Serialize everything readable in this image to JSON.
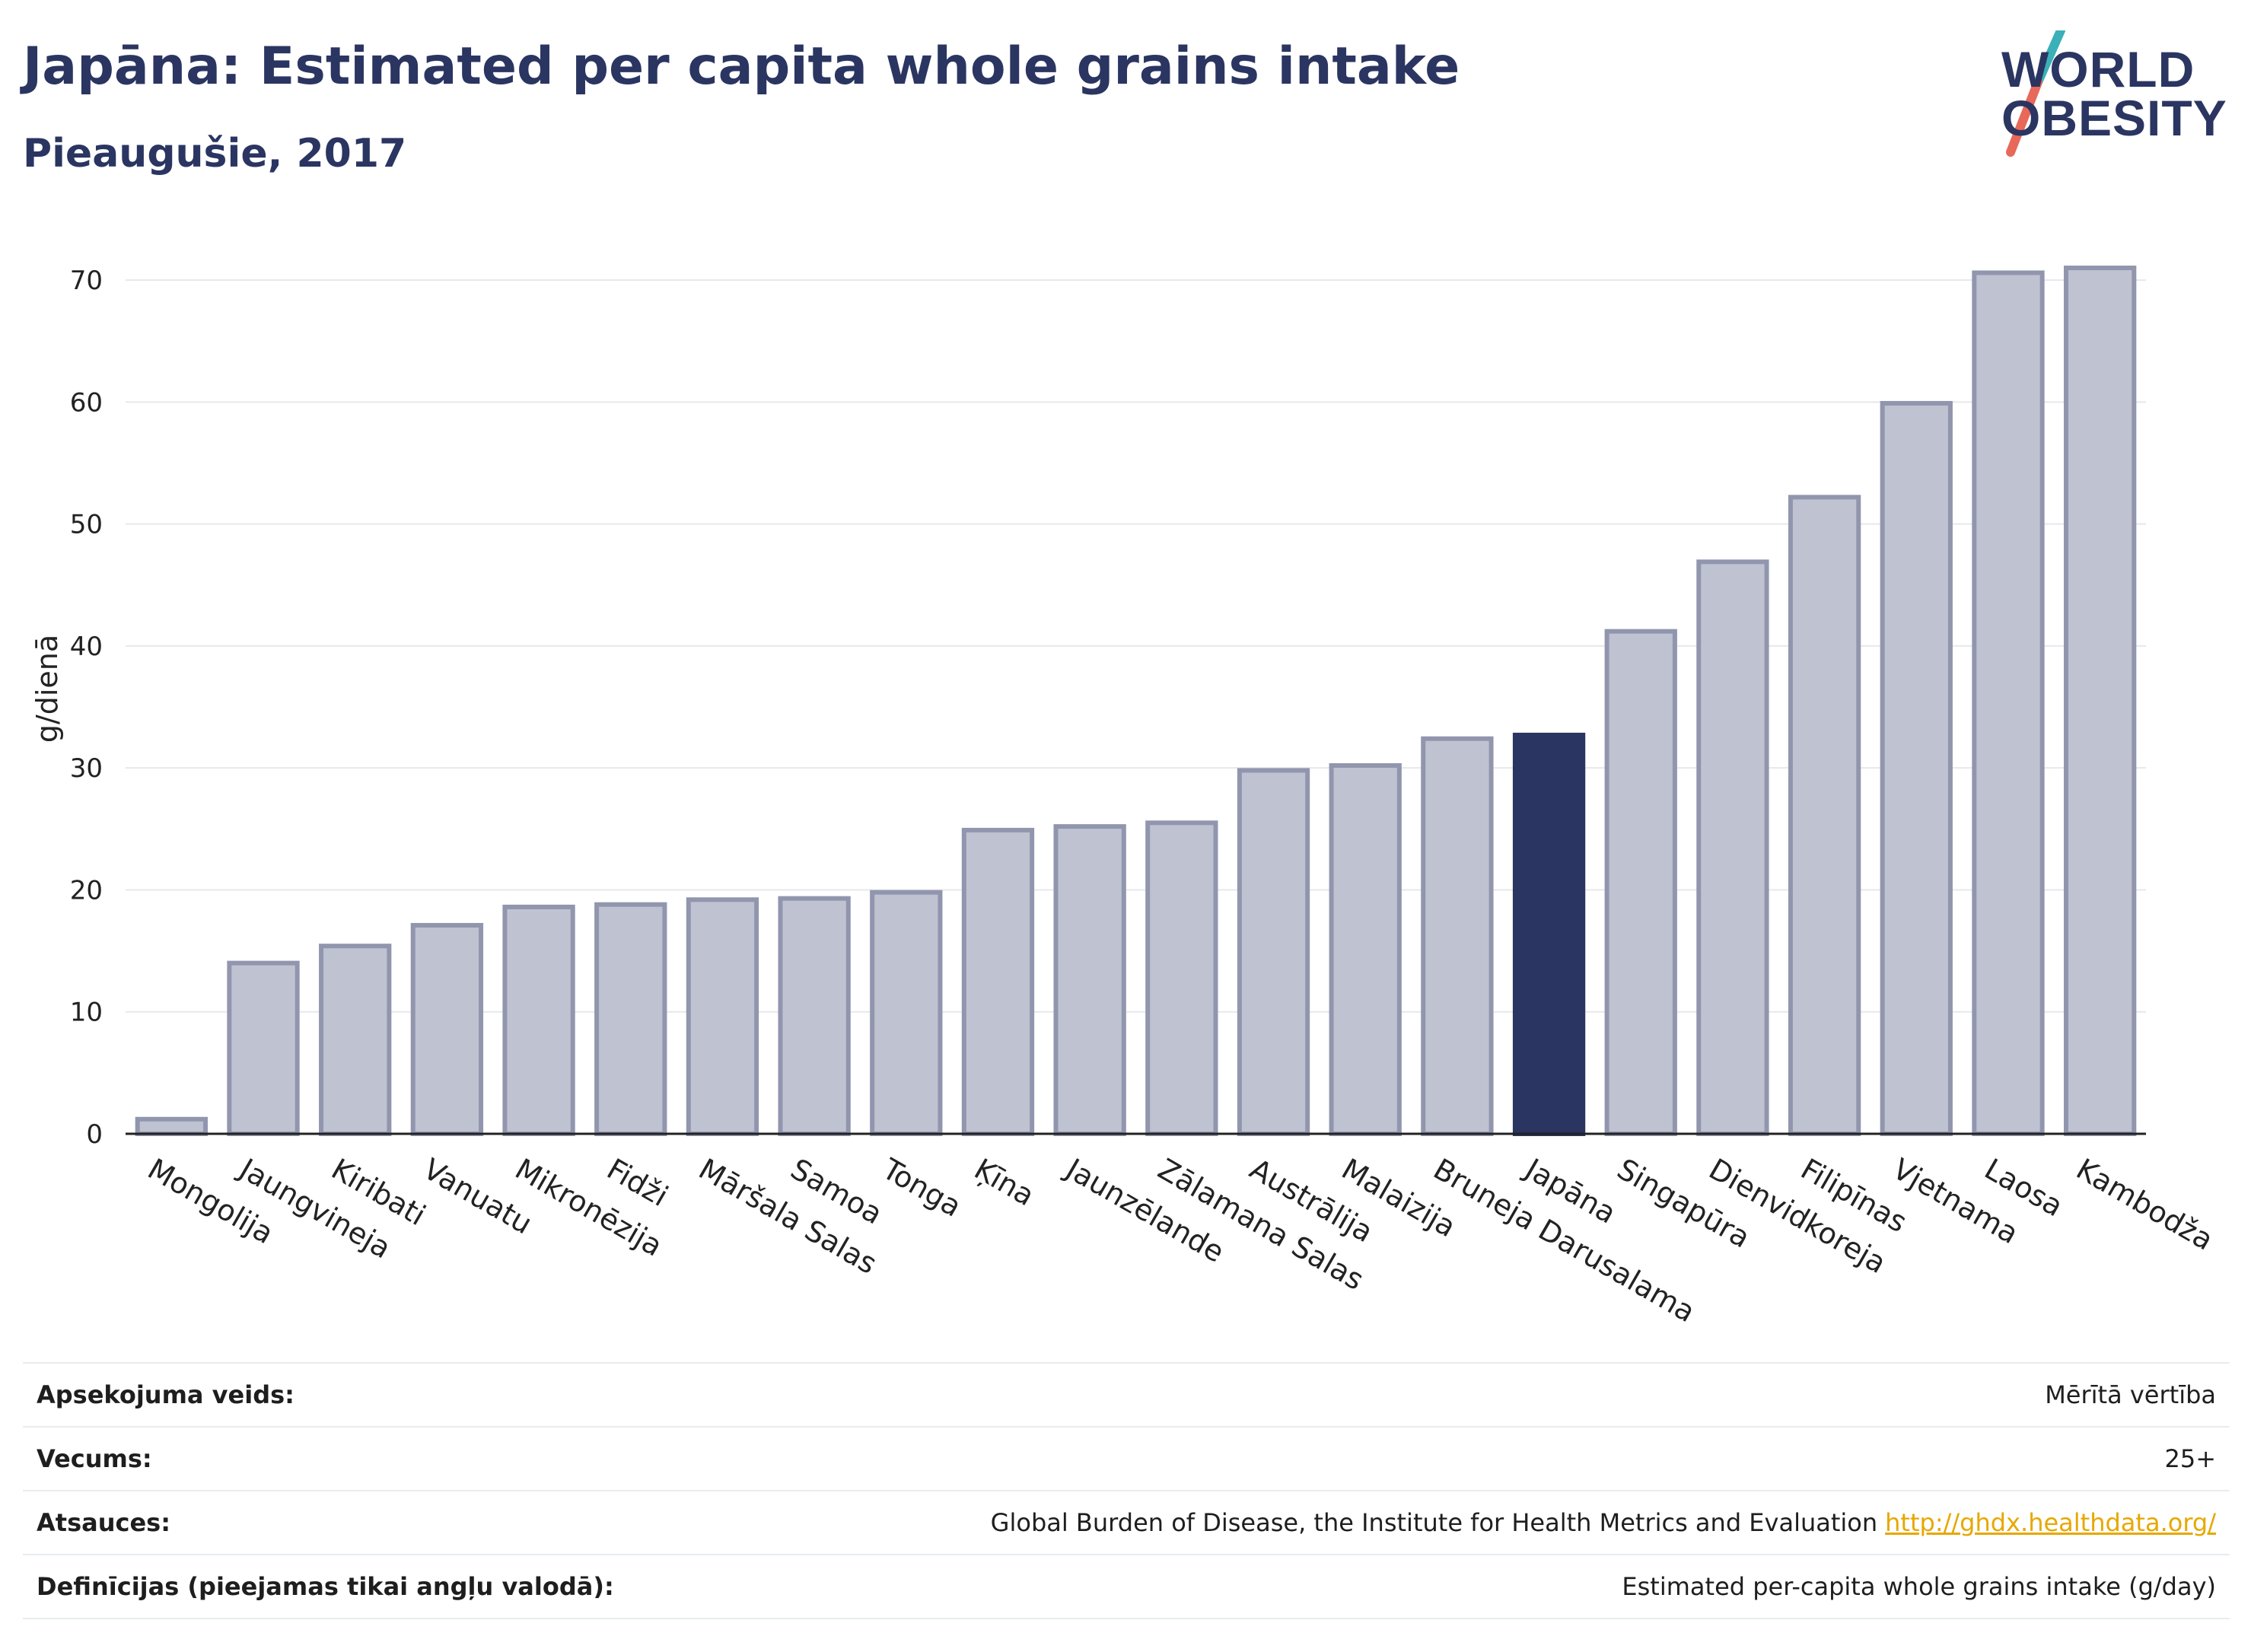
{
  "title": "Japāna: Estimated per capita whole grains intake",
  "subtitle": "Pieaugušie, 2017",
  "logo": {
    "line1": "WORLD",
    "line2": "OBESITY",
    "colors": {
      "text": "#2b3561",
      "slash_top": "#3ab0b8",
      "slash_bottom": "#e8685a"
    }
  },
  "colors": {
    "bar": "#bfc2d0",
    "bar_border": "#9196ae",
    "highlight": "#2b3561",
    "grid": "#e6e8ec",
    "axis": "#222222"
  },
  "chart_data": {
    "type": "bar",
    "ylabel": "g/dienā",
    "ylim": [
      0,
      73
    ],
    "yticks": [
      0,
      10,
      20,
      30,
      40,
      50,
      60,
      70
    ],
    "grid": true,
    "highlight": "Japāna",
    "categories": [
      "Mongolija",
      "Jaungvineja",
      "Kiribati",
      "Vanuatu",
      "Mikronēzija",
      "Fidži",
      "Māršala Salas",
      "Samoa",
      "Tonga",
      "Ķīna",
      "Jaunzēlande",
      "Zālamana Salas",
      "Austrālija",
      "Malaizija",
      "Bruneja Darusalama",
      "Japāna",
      "Singapūra",
      "Dienvidkoreja",
      "Filipīnas",
      "Vjetnama",
      "Laosa",
      "Kambodža"
    ],
    "values": [
      1.2,
      14.0,
      15.4,
      17.1,
      18.6,
      18.8,
      19.2,
      19.3,
      19.8,
      24.9,
      25.2,
      25.5,
      29.8,
      30.2,
      32.4,
      32.7,
      41.2,
      46.9,
      52.2,
      59.9,
      70.6,
      71.0
    ]
  },
  "footer": [
    {
      "label": "Apsekojuma veids:",
      "value": "Mērītā vērtība",
      "link": ""
    },
    {
      "label": "Vecums:",
      "value": "25+",
      "link": ""
    },
    {
      "label": "Atsauces:",
      "value": "Global Burden of Disease, the Institute for Health Metrics and Evaluation",
      "link": "http://ghdx.healthdata.org/"
    },
    {
      "label": "Definīcijas (pieejamas tikai angļu valodā):",
      "value": "Estimated per-capita whole grains intake (g/day)",
      "link": ""
    }
  ]
}
